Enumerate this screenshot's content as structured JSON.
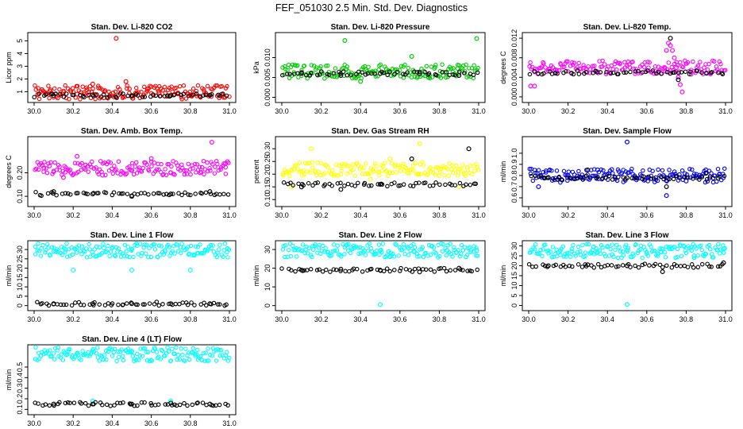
{
  "page": {
    "title": "FEF_051030  2.5 Min. Std. Dev. Diagnostics"
  },
  "chart_data": [
    {
      "type": "scatter",
      "title": "Stan. Dev. Li-820 CO2",
      "xlabel": "",
      "ylabel": "Licor ppm",
      "xlim": [
        30.0,
        31.0
      ],
      "ylim": [
        0.4,
        5.4
      ],
      "xticks": [
        "30.0",
        "30.2",
        "30.4",
        "30.6",
        "30.8",
        "31.0"
      ],
      "yticks": [
        "1",
        "2",
        "3",
        "4",
        "5"
      ],
      "series": [
        {
          "color": "#ff0000",
          "values": [
            [
              30.02,
              0.8
            ],
            [
              30.08,
              1.05
            ],
            [
              30.15,
              0.95
            ],
            [
              30.22,
              0.8
            ],
            [
              30.27,
              1.15
            ],
            [
              30.3,
              1.6
            ],
            [
              30.33,
              1.3
            ],
            [
              30.36,
              1.0
            ],
            [
              30.42,
              5.2
            ],
            [
              30.47,
              1.8
            ],
            [
              30.52,
              0.9
            ],
            [
              30.58,
              1.2
            ],
            [
              30.64,
              0.9
            ],
            [
              30.72,
              0.8
            ],
            [
              30.8,
              0.75
            ],
            [
              30.88,
              0.85
            ],
            [
              30.96,
              0.8
            ]
          ]
        },
        {
          "color": "#000000",
          "values": [
            [
              30.1,
              0.7
            ],
            [
              30.3,
              0.75
            ],
            [
              30.5,
              0.7
            ],
            [
              30.7,
              0.7
            ],
            [
              30.9,
              0.72
            ]
          ]
        }
      ]
    },
    {
      "type": "scatter",
      "title": "Stan. Dev. Li-820 Pressure",
      "xlabel": "",
      "ylabel": "kPa",
      "xlim": [
        30.0,
        31.0
      ],
      "ylim": [
        -0.0005,
        0.0155
      ],
      "xticks": [
        "30.0",
        "30.2",
        "30.4",
        "30.6",
        "30.8",
        "31.0"
      ],
      "yticks": [
        "0.000",
        "0.005",
        "0.010"
      ],
      "series": [
        {
          "color": "#00cc00",
          "values": [
            [
              30.32,
              0.0143
            ],
            [
              30.66,
              0.0103
            ],
            [
              30.99,
              0.0148
            ],
            [
              30.05,
              0.0055
            ],
            [
              30.2,
              0.0065
            ],
            [
              30.4,
              0.004
            ],
            [
              30.55,
              0.0065
            ],
            [
              30.75,
              0.0055
            ],
            [
              30.9,
              0.006
            ]
          ]
        },
        {
          "color": "#000000",
          "values": [
            [
              30.1,
              0.006
            ],
            [
              30.3,
              0.0055
            ],
            [
              30.5,
              0.006
            ],
            [
              30.7,
              0.006
            ],
            [
              30.9,
              0.0055
            ]
          ]
        }
      ]
    },
    {
      "type": "scatter",
      "title": "Stan. Dev. Li-820 Temp.",
      "xlabel": "",
      "ylabel": "degrees C",
      "xlim": [
        30.0,
        31.0
      ],
      "ylim": [
        -0.0005,
        0.0125
      ],
      "xticks": [
        "30.0",
        "30.2",
        "30.4",
        "30.6",
        "30.8",
        "31.0"
      ],
      "yticks": [
        "0.000",
        "0.004",
        "0.008",
        "0.012"
      ],
      "series": [
        {
          "color": "#ff00ff",
          "values": [
            [
              30.01,
              0.0022
            ],
            [
              30.03,
              0.0022
            ],
            [
              30.69,
              0.006
            ],
            [
              30.7,
              0.0095
            ],
            [
              30.71,
              0.011
            ],
            [
              30.72,
              0.0105
            ],
            [
              30.73,
              0.0095
            ],
            [
              30.74,
              0.008
            ],
            [
              30.75,
              0.006
            ],
            [
              30.76,
              0.004
            ],
            [
              30.77,
              0.0025
            ],
            [
              30.78,
              0.001
            ]
          ]
        },
        {
          "color": "#000000",
          "values": [
            [
              30.72,
              0.012
            ],
            [
              30.74,
              0.005
            ],
            [
              30.76,
              0.0035
            ]
          ]
        }
      ]
    },
    {
      "type": "scatter",
      "title": "Stan. Dev. Amb. Box Temp.",
      "xlabel": "",
      "ylabel": "degrees C",
      "xlim": [
        30.0,
        31.0
      ],
      "ylim": [
        0.07,
        0.34
      ],
      "xticks": [
        "30.0",
        "30.2",
        "30.4",
        "30.6",
        "30.8",
        "31.0"
      ],
      "yticks": [
        "0.10",
        "0.20"
      ],
      "series": [
        {
          "color": "#ff00ff",
          "values": [
            [
              30.05,
              0.22
            ],
            [
              30.15,
              0.18
            ],
            [
              30.22,
              0.27
            ],
            [
              30.35,
              0.19
            ],
            [
              30.5,
              0.21
            ],
            [
              30.6,
              0.26
            ],
            [
              30.7,
              0.2
            ],
            [
              30.85,
              0.2
            ],
            [
              30.91,
              0.33
            ],
            [
              30.98,
              0.24
            ]
          ]
        },
        {
          "color": "#000000",
          "values": [
            [
              30.1,
              0.12
            ],
            [
              30.3,
              0.11
            ],
            [
              30.5,
              0.1
            ],
            [
              30.7,
              0.11
            ],
            [
              30.9,
              0.12
            ]
          ]
        }
      ]
    },
    {
      "type": "scatter",
      "title": "Stan. Dev. Gas Stream RH",
      "xlabel": "",
      "ylabel": "percent",
      "xlim": [
        30.0,
        31.0
      ],
      "ylim": [
        0.085,
        0.335
      ],
      "xticks": [
        "30.0",
        "30.2",
        "30.4",
        "30.6",
        "30.8",
        "31.0"
      ],
      "yticks": [
        "0.10",
        "0.15",
        "0.20",
        "0.25",
        "0.30"
      ],
      "series": [
        {
          "color": "#ffff00",
          "values": [
            [
              30.05,
              0.15
            ],
            [
              30.15,
              0.3
            ],
            [
              30.3,
              0.2
            ],
            [
              30.45,
              0.18
            ],
            [
              30.55,
              0.26
            ],
            [
              30.7,
              0.32
            ],
            [
              30.8,
              0.22
            ],
            [
              30.9,
              0.15
            ]
          ]
        },
        {
          "color": "#000000",
          "values": [
            [
              30.1,
              0.15
            ],
            [
              30.3,
              0.14
            ],
            [
              30.5,
              0.16
            ],
            [
              30.66,
              0.26
            ],
            [
              30.95,
              0.3
            ]
          ]
        }
      ]
    },
    {
      "type": "scatter",
      "title": "Stan. Dev. Sample Flow",
      "xlabel": "",
      "ylabel": "ml/min",
      "xlim": [
        30.0,
        31.0
      ],
      "ylim": [
        0.55,
        1.12
      ],
      "xticks": [
        "30.0",
        "30.2",
        "30.4",
        "30.6",
        "30.8",
        "31.0"
      ],
      "yticks": [
        "0.6",
        "0.7",
        "0.8",
        "0.9",
        "1.0"
      ],
      "series": [
        {
          "color": "#0000ff",
          "values": [
            [
              30.05,
              0.7
            ],
            [
              30.2,
              0.8
            ],
            [
              30.35,
              0.85
            ],
            [
              30.5,
              1.1
            ],
            [
              30.6,
              0.78
            ],
            [
              30.7,
              0.62
            ],
            [
              30.8,
              0.75
            ],
            [
              30.9,
              0.85
            ]
          ]
        },
        {
          "color": "#000000",
          "values": [
            [
              30.1,
              0.78
            ],
            [
              30.3,
              0.85
            ],
            [
              30.5,
              0.78
            ],
            [
              30.7,
              0.7
            ],
            [
              30.9,
              0.82
            ]
          ]
        }
      ]
    },
    {
      "type": "scatter",
      "title": "Stan. Dev. Line 1 Flow",
      "xlabel": "",
      "ylabel": "ml/min",
      "xlim": [
        30.0,
        31.0
      ],
      "ylim": [
        -1.0,
        33.0
      ],
      "xticks": [
        "30.0",
        "30.2",
        "30.4",
        "30.6",
        "30.8",
        "31.0"
      ],
      "yticks": [
        "0",
        "5",
        "10",
        "15",
        "20",
        "25",
        "30"
      ],
      "series": [
        {
          "color": "#00ffff",
          "values": [
            [
              30.16,
              30.0
            ],
            [
              30.32,
              31.5
            ],
            [
              30.5,
              30.0
            ],
            [
              30.67,
              29.5
            ],
            [
              30.84,
              28.0
            ],
            [
              30.99,
              30.5
            ],
            [
              30.2,
              19.0
            ],
            [
              30.5,
              19.0
            ],
            [
              30.8,
              19.0
            ]
          ]
        },
        {
          "color": "#000000",
          "values": [
            [
              30.1,
              1.0
            ],
            [
              30.3,
              1.0
            ],
            [
              30.5,
              1.0
            ],
            [
              30.7,
              1.0
            ],
            [
              30.9,
              1.0
            ]
          ]
        }
      ]
    },
    {
      "type": "scatter",
      "title": "Stan. Dev. Line 2 Flow",
      "xlabel": "",
      "ylabel": "ml/min",
      "xlim": [
        30.0,
        31.0
      ],
      "ylim": [
        -1.0,
        33.0
      ],
      "xticks": [
        "30.0",
        "30.2",
        "30.4",
        "30.6",
        "30.8",
        "31.0"
      ],
      "yticks": [
        "0",
        "10",
        "20",
        "30"
      ],
      "series": [
        {
          "color": "#00ffff",
          "values": [
            [
              30.16,
              30.0
            ],
            [
              30.33,
              32.5
            ],
            [
              30.5,
              29.5
            ],
            [
              30.67,
              29.0
            ],
            [
              30.84,
              29.5
            ],
            [
              30.99,
              29.5
            ],
            [
              30.5,
              0.5
            ]
          ]
        },
        {
          "color": "#000000",
          "values": [
            [
              30.1,
              19.0
            ],
            [
              30.3,
              19.5
            ],
            [
              30.5,
              19.0
            ],
            [
              30.7,
              18.0
            ],
            [
              30.9,
              20.0
            ]
          ]
        }
      ]
    },
    {
      "type": "scatter",
      "title": "Stan. Dev. Line 3 Flow",
      "xlabel": "",
      "ylabel": "ml/min",
      "xlim": [
        30.0,
        31.0
      ],
      "ylim": [
        -1.0,
        31.0
      ],
      "xticks": [
        "30.0",
        "30.2",
        "30.4",
        "30.6",
        "30.8",
        "31.0"
      ],
      "yticks": [
        "0",
        "5",
        "10",
        "15",
        "20",
        "25",
        "30"
      ],
      "series": [
        {
          "color": "#00ffff",
          "values": [
            [
              30.16,
              27.5
            ],
            [
              30.33,
              29.5
            ],
            [
              30.5,
              28.0
            ],
            [
              30.67,
              27.0
            ],
            [
              30.84,
              25.0
            ],
            [
              30.99,
              28.5
            ],
            [
              30.5,
              0.5
            ]
          ]
        },
        {
          "color": "#000000",
          "values": [
            [
              30.1,
              20.0
            ],
            [
              30.3,
              20.5
            ],
            [
              30.5,
              20.0
            ],
            [
              30.68,
              17.0
            ],
            [
              30.99,
              21.5
            ]
          ]
        }
      ]
    },
    {
      "type": "scatter",
      "title": "Stan. Dev. Line 4 (LT) Flow",
      "xlabel": "",
      "ylabel": "ml/min",
      "xlim": [
        30.0,
        31.0
      ],
      "ylim": [
        0.08,
        0.68
      ],
      "xticks": [
        "30.0",
        "30.2",
        "30.4",
        "30.6",
        "30.8",
        "31.0"
      ],
      "yticks": [
        "0.1",
        "0.2",
        "0.3",
        "0.4",
        "0.5"
      ],
      "series": [
        {
          "color": "#00ffff",
          "values": [
            [
              30.17,
              0.62
            ],
            [
              30.5,
              0.65
            ],
            [
              30.83,
              0.62
            ],
            [
              30.3,
              0.18
            ],
            [
              30.7,
              0.18
            ]
          ]
        },
        {
          "color": "#000000",
          "values": [
            [
              30.1,
              0.15
            ],
            [
              30.3,
              0.15
            ],
            [
              30.5,
              0.15
            ],
            [
              30.7,
              0.16
            ],
            [
              30.9,
              0.15
            ]
          ]
        }
      ]
    }
  ]
}
